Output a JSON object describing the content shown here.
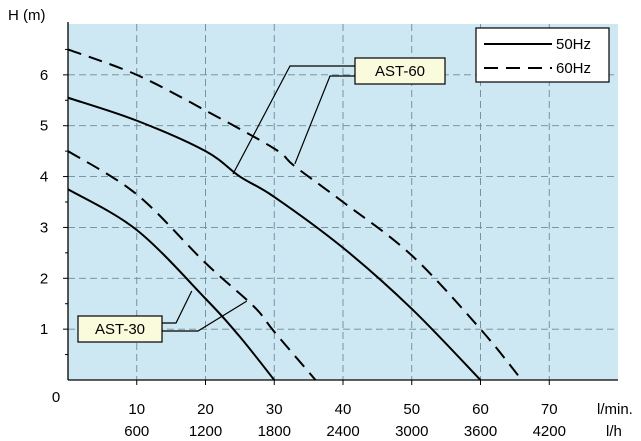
{
  "chart_data": {
    "type": "line",
    "ylabel": "H (m)",
    "xlabel_primary": "l/min.",
    "xlabel_secondary": "l/h",
    "origin_label": "0",
    "xlim": [
      0,
      80
    ],
    "ylim": [
      0,
      7
    ],
    "x_ticks": [
      {
        "value": 10,
        "label": "10",
        "label2": "600"
      },
      {
        "value": 20,
        "label": "20",
        "label2": "1200"
      },
      {
        "value": 30,
        "label": "30",
        "label2": "1800"
      },
      {
        "value": 40,
        "label": "40",
        "label2": "2400"
      },
      {
        "value": 50,
        "label": "50",
        "label2": "3000"
      },
      {
        "value": 60,
        "label": "60",
        "label2": "3600"
      },
      {
        "value": 70,
        "label": "70",
        "label2": "4200"
      }
    ],
    "y_ticks": [
      {
        "value": 1,
        "label": "1"
      },
      {
        "value": 2,
        "label": "2"
      },
      {
        "value": 3,
        "label": "3"
      },
      {
        "value": 4,
        "label": "4"
      },
      {
        "value": 5,
        "label": "5"
      },
      {
        "value": 6,
        "label": "6"
      }
    ],
    "grid": true,
    "background_color": "#cde8f2",
    "grid_color": "#6e8a96",
    "legend": {
      "placement": "top-right",
      "entries": [
        {
          "label": "50Hz",
          "style": "solid"
        },
        {
          "label": "60Hz",
          "style": "dashed"
        }
      ]
    },
    "series": [
      {
        "model": "AST-60",
        "freq": "50Hz",
        "style": "solid",
        "points": [
          [
            0,
            5.55
          ],
          [
            10,
            5.1
          ],
          [
            20,
            4.5
          ],
          [
            25,
            4.0
          ],
          [
            30,
            3.6
          ],
          [
            40,
            2.6
          ],
          [
            50,
            1.4
          ],
          [
            60,
            0
          ]
        ]
      },
      {
        "model": "AST-60",
        "freq": "60Hz",
        "style": "dashed",
        "points": [
          [
            0,
            6.5
          ],
          [
            10,
            6.0
          ],
          [
            20,
            5.3
          ],
          [
            30,
            4.55
          ],
          [
            33,
            4.2
          ],
          [
            40,
            3.5
          ],
          [
            50,
            2.45
          ],
          [
            60,
            1.0
          ],
          [
            66,
            0
          ]
        ]
      },
      {
        "model": "AST-30",
        "freq": "50Hz",
        "style": "solid",
        "points": [
          [
            0,
            3.75
          ],
          [
            10,
            2.95
          ],
          [
            20,
            1.6
          ],
          [
            25,
            0.85
          ],
          [
            30,
            0
          ]
        ]
      },
      {
        "model": "AST-30",
        "freq": "60Hz",
        "style": "dashed",
        "points": [
          [
            0,
            4.5
          ],
          [
            10,
            3.65
          ],
          [
            20,
            2.3
          ],
          [
            27,
            1.45
          ],
          [
            30,
            0.95
          ],
          [
            36,
            0
          ]
        ]
      }
    ],
    "annotations": [
      {
        "label": "AST-60",
        "box_color": "#fafadc",
        "targets": [
          [
            24,
            4.05
          ],
          [
            33,
            4.25
          ]
        ]
      },
      {
        "label": "AST-30",
        "box_color": "#fafadc",
        "targets": [
          [
            18,
            1.75
          ],
          [
            26,
            1.55
          ]
        ]
      }
    ]
  }
}
